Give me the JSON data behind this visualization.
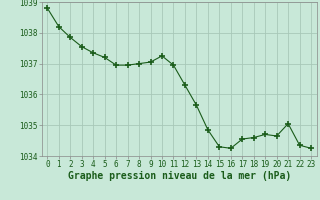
{
  "x": [
    0,
    1,
    2,
    3,
    4,
    5,
    6,
    7,
    8,
    9,
    10,
    11,
    12,
    13,
    14,
    15,
    16,
    17,
    18,
    19,
    20,
    21,
    22,
    23
  ],
  "y": [
    1038.8,
    1038.2,
    1037.85,
    1037.55,
    1037.35,
    1037.2,
    1036.95,
    1036.95,
    1037.0,
    1037.05,
    1037.25,
    1036.95,
    1036.3,
    1035.65,
    1034.85,
    1034.3,
    1034.25,
    1034.55,
    1034.6,
    1034.7,
    1034.65,
    1035.05,
    1034.35,
    1034.25
  ],
  "line_color": "#1a5c1a",
  "marker_color": "#1a5c1a",
  "bg_color": "#c8e8d8",
  "plot_bg_color": "#c8e8d8",
  "grid_color": "#a8c8b8",
  "ylim": [
    1034.0,
    1039.0
  ],
  "yticks": [
    1034,
    1035,
    1036,
    1037,
    1038,
    1039
  ],
  "xticks": [
    0,
    1,
    2,
    3,
    4,
    5,
    6,
    7,
    8,
    9,
    10,
    11,
    12,
    13,
    14,
    15,
    16,
    17,
    18,
    19,
    20,
    21,
    22,
    23
  ],
  "xlabel": "Graphe pression niveau de la mer (hPa)",
  "xlabel_color": "#1a5c1a",
  "xlabel_fontsize": 7,
  "tick_fontsize": 5.5,
  "tick_color": "#1a5c1a",
  "border_color": "#888888"
}
